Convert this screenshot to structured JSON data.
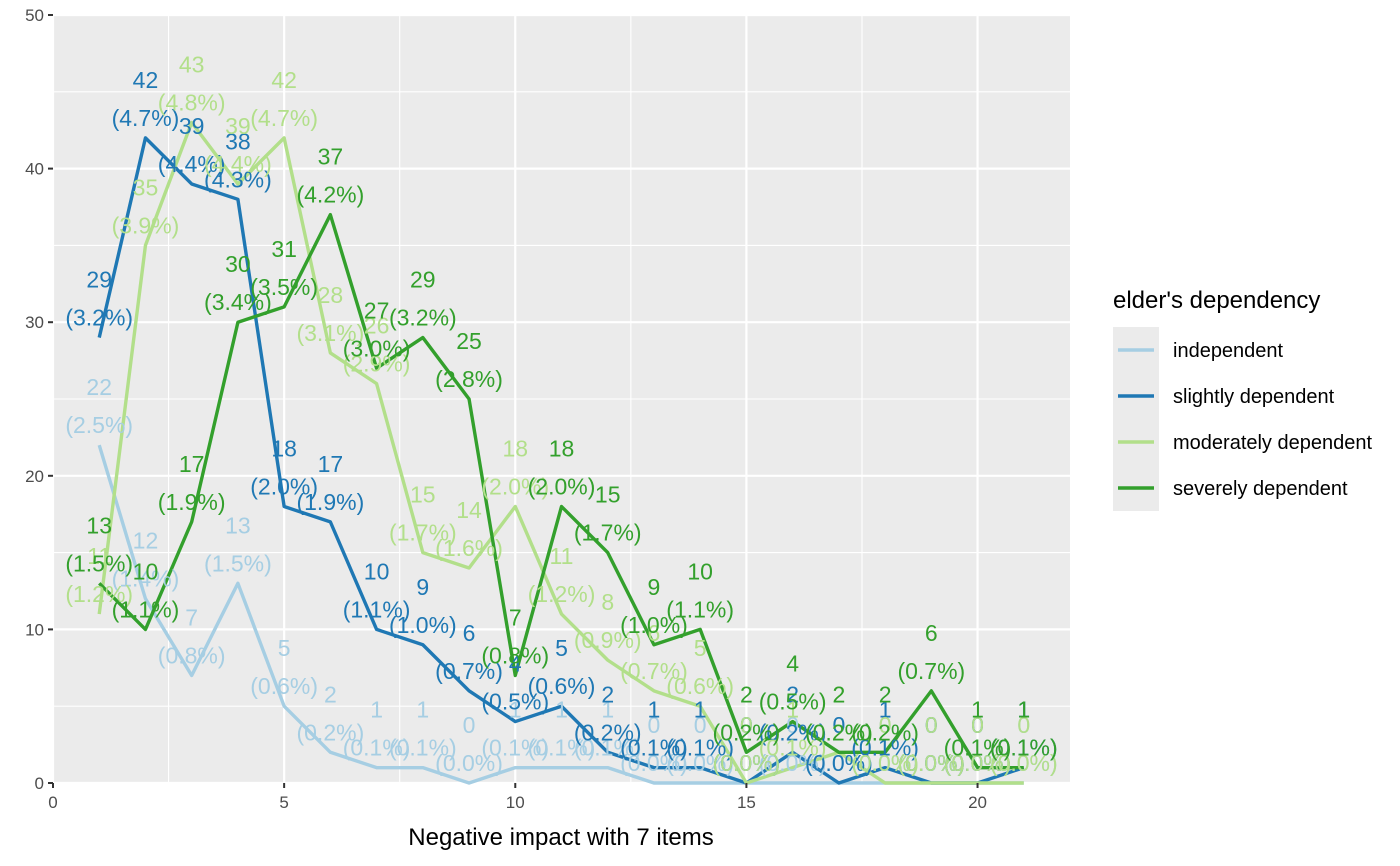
{
  "chart_data": {
    "type": "line",
    "title": "",
    "xlabel": "Negative impact with 7 items",
    "ylabel": "",
    "xlim": [
      0,
      22
    ],
    "ylim": [
      0,
      50
    ],
    "x_ticks": [
      0,
      5,
      10,
      15,
      20
    ],
    "y_ticks": [
      0,
      10,
      20,
      30,
      40,
      50
    ],
    "grid": true,
    "legend": {
      "title": "elder's dependency",
      "position": "right"
    },
    "x": [
      1,
      2,
      3,
      4,
      5,
      6,
      7,
      8,
      9,
      10,
      11,
      12,
      13,
      14,
      15,
      16,
      17,
      18,
      19,
      20,
      21
    ],
    "series": [
      {
        "name": "independent",
        "color": "#a6cee3",
        "values": [
          22,
          12,
          7,
          13,
          5,
          2,
          1,
          1,
          0,
          1,
          1,
          1,
          0,
          0,
          0,
          0,
          0,
          0,
          0,
          0,
          0
        ],
        "labels": [
          "22",
          "12",
          "7",
          "13",
          "5",
          "2",
          "1",
          "1",
          "0",
          "1",
          "1",
          "1",
          "0",
          "0",
          "0",
          "0",
          "0",
          "0",
          "0",
          "0",
          "0"
        ],
        "pct": [
          "(2.5%)",
          "(1.4%)",
          "(0.8%)",
          "(1.5%)",
          "(0.6%)",
          "(0.2%)",
          "(0.1%)",
          "(0.1%)",
          "(0.0%)",
          "(0.1%)",
          "(0.1%)",
          "(0.1%)",
          "(0.0%)",
          "(0.0%)",
          "(0.0%)",
          "(0.0%)",
          "(0.0%)",
          "(0.0%)",
          "(0.0%)",
          "(0.0%)",
          "(0.0%)"
        ]
      },
      {
        "name": "slightly dependent",
        "color": "#1f78b4",
        "values": [
          29,
          42,
          39,
          38,
          18,
          17,
          10,
          9,
          6,
          4,
          5,
          2,
          1,
          1,
          0,
          2,
          0,
          1,
          0,
          0,
          1
        ],
        "labels": [
          "29",
          "42",
          "39",
          "38",
          "18",
          "17",
          "10",
          "9",
          "6",
          "4",
          "5",
          "2",
          "1",
          "1",
          "0",
          "2",
          "0",
          "1",
          "0",
          "0",
          "1"
        ],
        "pct": [
          "(3.2%)",
          "(4.7%)",
          "(4.4%)",
          "(4.3%)",
          "(2.0%)",
          "(1.9%)",
          "(1.1%)",
          "(1.0%)",
          "(0.7%)",
          "(0.5%)",
          "(0.6%)",
          "(0.2%)",
          "(0.1%)",
          "(0.1%)",
          "(0.0%)",
          "(0.2%)",
          "(0.0%)",
          "(0.1%)",
          "(0.0%)",
          "(0.0%)",
          "(0.1%)"
        ]
      },
      {
        "name": "moderately dependent",
        "color": "#b2df8a",
        "values": [
          11,
          35,
          43,
          39,
          42,
          28,
          26,
          15,
          14,
          18,
          11,
          8,
          6,
          5,
          0,
          1,
          2,
          0,
          0,
          0,
          0
        ],
        "labels": [
          "11",
          "35",
          "43",
          "39",
          "42",
          "28",
          "26",
          "15",
          "14",
          "18",
          "11",
          "8",
          "6",
          "5",
          "0",
          "1",
          "2",
          "0",
          "0",
          "0",
          "0"
        ],
        "pct": [
          "(1.2%)",
          "(3.9%)",
          "(4.8%)",
          "(4.4%)",
          "(4.7%)",
          "(3.1%)",
          "(2.9%)",
          "(1.7%)",
          "(1.6%)",
          "(2.0%)",
          "(1.2%)",
          "(0.9%)",
          "(0.7%)",
          "(0.6%)",
          "(0.0%)",
          "(0.1%)",
          "(0.2%)",
          "(0.0%)",
          "(0.0%)",
          "(0.0%)",
          "(0.0%)"
        ]
      },
      {
        "name": "severely dependent",
        "color": "#33a02c",
        "values": [
          13,
          10,
          17,
          30,
          31,
          37,
          27,
          29,
          25,
          7,
          18,
          15,
          9,
          10,
          2,
          4,
          2,
          2,
          6,
          1,
          1
        ],
        "labels": [
          "13",
          "10",
          "17",
          "30",
          "31",
          "37",
          "27",
          "29",
          "25",
          "7",
          "18",
          "15",
          "9",
          "10",
          "2",
          "4",
          "2",
          "2",
          "6",
          "1",
          "1"
        ],
        "pct": [
          "(1.5%)",
          "(1.1%)",
          "(1.9%)",
          "(3.4%)",
          "(3.5%)",
          "(4.2%)",
          "(3.0%)",
          "(3.2%)",
          "(2.8%)",
          "(0.8%)",
          "(2.0%)",
          "(1.7%)",
          "(1.0%)",
          "(1.1%)",
          "(0.2%)",
          "(0.5%)",
          "(0.2%)",
          "(0.2%)",
          "(0.7%)",
          "(0.1%)",
          "(0.1%)"
        ]
      }
    ]
  }
}
